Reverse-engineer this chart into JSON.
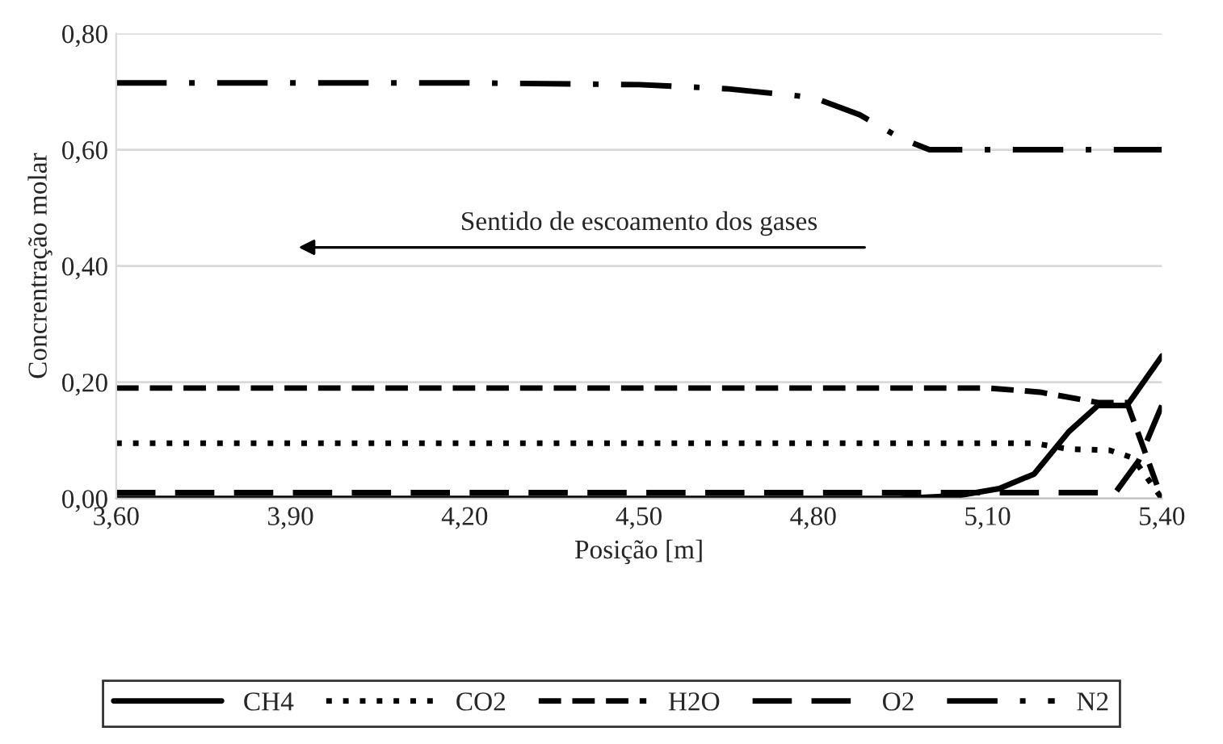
{
  "chart_data": {
    "type": "line",
    "xlabel": "Posição [m]",
    "ylabel": "Concrentração molar",
    "annotations": [
      "Sentido de escoamento dos gases"
    ],
    "xlim": [
      3.6,
      5.4
    ],
    "ylim": [
      0,
      0.8
    ],
    "xticks": [
      {
        "value": 3.6,
        "label": "3,60"
      },
      {
        "value": 3.9,
        "label": "3,90"
      },
      {
        "value": 4.2,
        "label": "4,20"
      },
      {
        "value": 4.5,
        "label": "4,50"
      },
      {
        "value": 4.8,
        "label": "4,80"
      },
      {
        "value": 5.1,
        "label": "5,10"
      },
      {
        "value": 5.4,
        "label": "5,40"
      }
    ],
    "yticks": [
      {
        "value": 0,
        "label": "0,00"
      },
      {
        "value": 0.2,
        "label": "0,20"
      },
      {
        "value": 0.4,
        "label": "0,40"
      },
      {
        "value": 0.6,
        "label": "0,60"
      },
      {
        "value": 0.8,
        "label": "0,80"
      }
    ],
    "grid": "y",
    "legend": "bottom",
    "series": [
      {
        "name": "CH4",
        "color": "#000000",
        "line_style": "solid",
        "x": [
          3.6,
          4.5,
          4.95,
          5.05,
          5.12,
          5.18,
          5.24,
          5.29,
          5.34,
          5.4
        ],
        "values": [
          0,
          0,
          0,
          0.005,
          0.017,
          0.042,
          0.115,
          0.16,
          0.16,
          0.245
        ]
      },
      {
        "name": "CO2",
        "color": "#000000",
        "line_style": "dotted",
        "x": [
          3.6,
          4.5,
          5.18,
          5.24,
          5.31,
          5.35,
          5.4
        ],
        "values": [
          0.095,
          0.095,
          0.095,
          0.085,
          0.083,
          0.07,
          0
        ]
      },
      {
        "name": "H2O",
        "color": "#000000",
        "line_style": "dashed",
        "x": [
          3.6,
          4.5,
          5.1,
          5.19,
          5.29,
          5.34,
          5.4
        ],
        "values": [
          0.19,
          0.19,
          0.19,
          0.183,
          0.165,
          0.165,
          0
        ]
      },
      {
        "name": "O2",
        "color": "#000000",
        "line_style": "longdash",
        "x": [
          3.6,
          4.5,
          5.1,
          5.32,
          5.36,
          5.4
        ],
        "values": [
          0.01,
          0.01,
          0.01,
          0.01,
          0.065,
          0.16
        ]
      },
      {
        "name": "N2",
        "color": "#000000",
        "line_style": "dashdot",
        "x": [
          3.6,
          4.2,
          4.5,
          4.65,
          4.8,
          4.88,
          4.95,
          5.0,
          5.4
        ],
        "values": [
          0.715,
          0.715,
          0.712,
          0.705,
          0.69,
          0.66,
          0.62,
          0.6,
          0.6
        ]
      }
    ]
  }
}
